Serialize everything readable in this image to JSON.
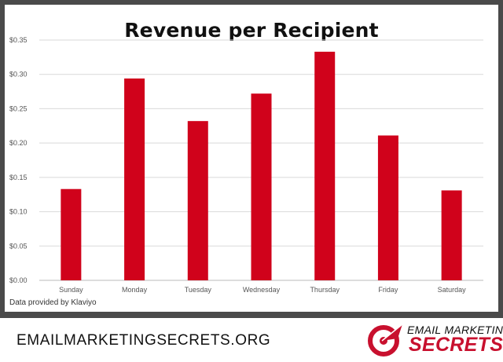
{
  "chart_data": {
    "type": "bar",
    "title": "Revenue per Recipient",
    "categories": [
      "Sunday",
      "Monday",
      "Tuesday",
      "Wednesday",
      "Thursday",
      "Friday",
      "Saturday"
    ],
    "values": [
      0.133,
      0.294,
      0.232,
      0.272,
      0.333,
      0.211,
      0.131
    ],
    "ylim": [
      0,
      0.35
    ],
    "yticks": [
      "$0.00",
      "$0.05",
      "$0.10",
      "$0.15",
      "$0.20",
      "$0.25",
      "$0.30",
      "$0.35"
    ],
    "bar_color": "#d0021b",
    "grid": true
  },
  "credit": "Data provided by Klaviyo",
  "footer": {
    "url": "EMAILMARKETINGSECRETS.ORG",
    "logo_top": "EMAIL MARKETING",
    "logo_bottom": "SECRETS",
    "logo_icon": "target-arrow-icon",
    "logo_color": "#c8102e"
  }
}
